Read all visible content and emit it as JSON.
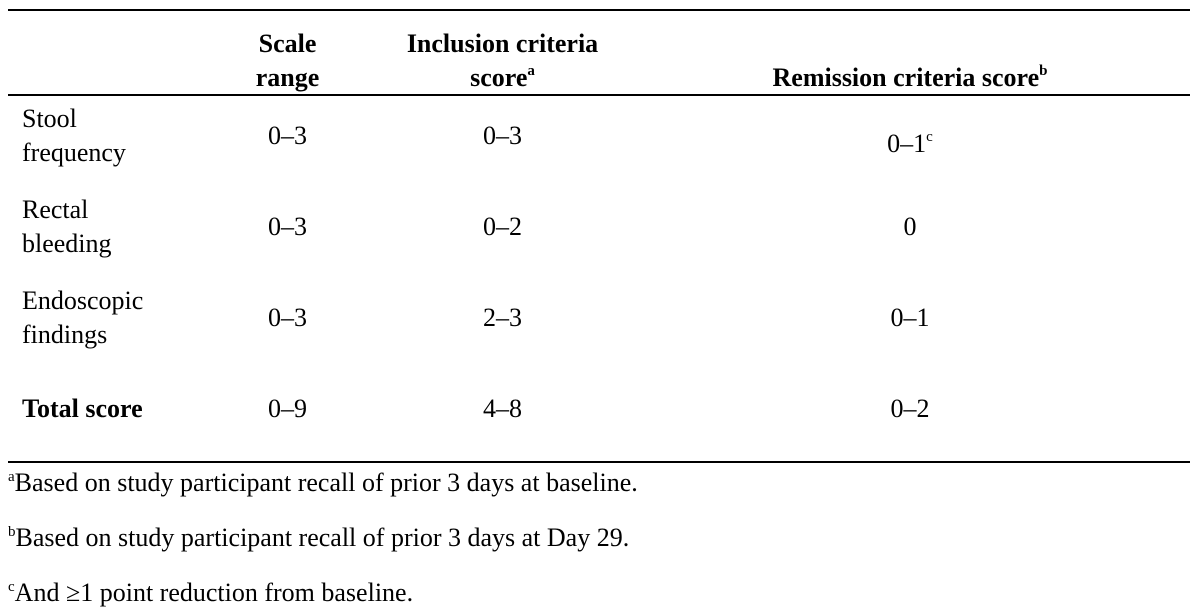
{
  "table": {
    "headers": {
      "scale_range": [
        "Scale",
        "range"
      ],
      "inclusion": {
        "line1": "Inclusion criteria",
        "line2": "score",
        "marker": "a"
      },
      "remission": {
        "text": "Remission criteria score",
        "marker": "b"
      }
    },
    "rows": [
      {
        "label": [
          "Stool",
          "frequency"
        ],
        "scale_range": "0–3",
        "inclusion": "0–3",
        "remission": "0–1",
        "remission_marker": "c"
      },
      {
        "label": [
          "Rectal",
          "bleeding"
        ],
        "scale_range": "0–3",
        "inclusion": "0–2",
        "remission": "0"
      },
      {
        "label": [
          "Endoscopic",
          "findings"
        ],
        "scale_range": "0–3",
        "inclusion": "2–3",
        "remission": "0–1"
      },
      {
        "label": [
          "Total score"
        ],
        "scale_range": "0–9",
        "inclusion": "4–8",
        "remission": "0–2"
      }
    ]
  },
  "footnotes": [
    {
      "marker": "a",
      "text": "Based on study participant recall of prior 3 days at baseline."
    },
    {
      "marker": "b",
      "text": "Based on study participant recall of prior 3 days at Day 29."
    },
    {
      "marker": "c",
      "text": "And ≥1 point reduction from baseline."
    }
  ]
}
